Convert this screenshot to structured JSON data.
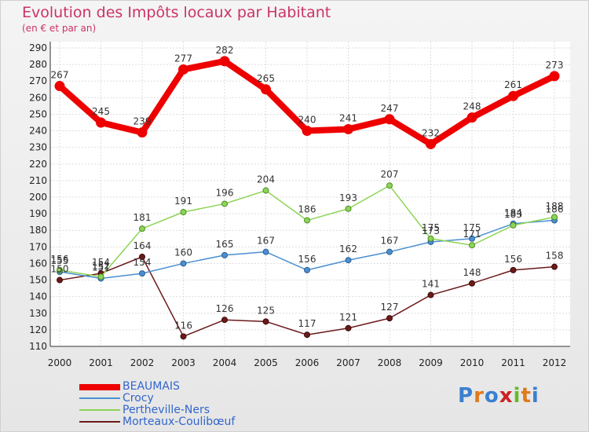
{
  "title": "Evolution des Impôts locaux par Habitant",
  "subtitle": "(en € et par an)",
  "chart_data": {
    "type": "line",
    "title": "Evolution des Impôts locaux par Habitant",
    "subtitle": "(en € et par an)",
    "xlabel": "",
    "ylabel": "",
    "x": [
      "2000",
      "2001",
      "2002",
      "2003",
      "2004",
      "2005",
      "2006",
      "2007",
      "2008",
      "2009",
      "2010",
      "2011",
      "2012"
    ],
    "ylim": [
      110,
      290
    ],
    "yticks": [
      110,
      120,
      130,
      140,
      150,
      160,
      170,
      180,
      190,
      200,
      210,
      220,
      230,
      240,
      250,
      260,
      270,
      280,
      290
    ],
    "grid": true,
    "legend_position": "bottom-left",
    "series": [
      {
        "name": "BEAUMAIS",
        "color": "#ee0000",
        "values": [
          267,
          245,
          239,
          277,
          282,
          265,
          240,
          241,
          247,
          232,
          248,
          261,
          273
        ]
      },
      {
        "name": "Crocy",
        "color": "#4a8fd0",
        "values": [
          155,
          151,
          154,
          160,
          165,
          167,
          156,
          162,
          167,
          173,
          175,
          184,
          186
        ]
      },
      {
        "name": "Pertheville-Ners",
        "color": "#8ed455",
        "values": [
          156,
          152,
          181,
          191,
          196,
          204,
          186,
          193,
          207,
          175,
          171,
          183,
          188
        ]
      },
      {
        "name": "Morteaux-Coulibœuf",
        "color": "#6b1a1a",
        "values": [
          150,
          154,
          164,
          116,
          126,
          125,
          117,
          121,
          127,
          141,
          148,
          156,
          158
        ]
      }
    ]
  },
  "legend": [
    {
      "label": "BEAUMAIS",
      "color": "#ee0000"
    },
    {
      "label": "Crocy",
      "color": "#4a8fd0"
    },
    {
      "label": "Pertheville-Ners",
      "color": "#8ed455"
    },
    {
      "label": "Morteaux-Coulibœuf",
      "color": "#6b1a1a"
    }
  ],
  "logo": {
    "letters": [
      "P",
      "r",
      "o",
      "x",
      "i",
      "t",
      "i"
    ],
    "colors": [
      "#3a7fd0",
      "#e07a1c",
      "#3a7fd0",
      "#cc2222",
      "#6ab82e",
      "#e07a1c",
      "#3a7fd0"
    ]
  }
}
